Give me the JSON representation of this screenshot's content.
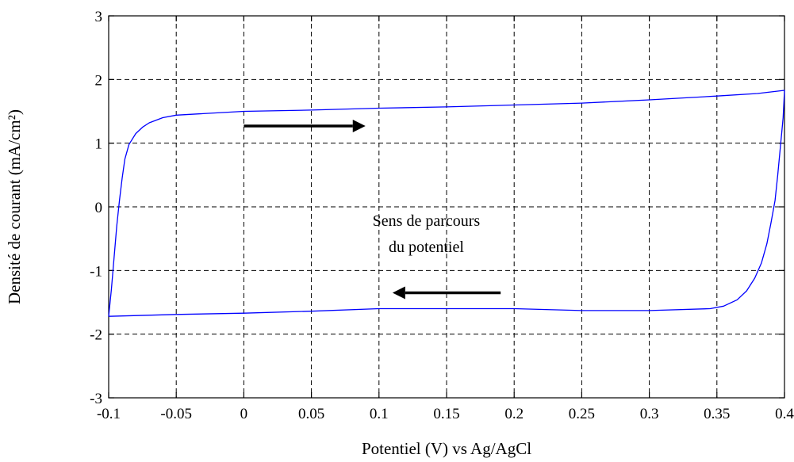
{
  "chart_data": {
    "type": "line",
    "title": "",
    "xlabel": "Potentiel (V) vs Ag/AgCl",
    "ylabel": "Densité de courant (mA/cm²)",
    "xlim": [
      -0.1,
      0.4
    ],
    "ylim": [
      -3,
      3
    ],
    "x_ticks": [
      -0.1,
      -0.05,
      0,
      0.05,
      0.1,
      0.15,
      0.2,
      0.25,
      0.3,
      0.35,
      0.4
    ],
    "x_tick_labels": [
      "-0.1",
      "-0.05",
      "0",
      "0.05",
      "0.1",
      "0.15",
      "0.2",
      "0.25",
      "0.3",
      "0.35",
      "0.4"
    ],
    "y_ticks": [
      -3,
      -2,
      -1,
      0,
      1,
      2,
      3
    ],
    "y_tick_labels": [
      "-3",
      "-2",
      "-1",
      "0",
      "1",
      "2",
      "3"
    ],
    "grid": true,
    "series": [
      {
        "color": "#0000ff",
        "x": [
          -0.1,
          -0.098,
          -0.096,
          -0.094,
          -0.092,
          -0.09,
          -0.088,
          -0.085,
          -0.08,
          -0.075,
          -0.07,
          -0.06,
          -0.05,
          0.0,
          0.05,
          0.1,
          0.15,
          0.2,
          0.25,
          0.3,
          0.35,
          0.38,
          0.4,
          0.4,
          0.399,
          0.397,
          0.395,
          0.393,
          0.39,
          0.387,
          0.383,
          0.378,
          0.372,
          0.365,
          0.355,
          0.345,
          0.3,
          0.25,
          0.2,
          0.15,
          0.1,
          0.05,
          0.0,
          -0.05,
          -0.1
        ],
        "y": [
          -1.72,
          -1.3,
          -0.8,
          -0.3,
          0.1,
          0.45,
          0.75,
          0.98,
          1.15,
          1.25,
          1.32,
          1.4,
          1.44,
          1.5,
          1.52,
          1.55,
          1.57,
          1.6,
          1.63,
          1.68,
          1.74,
          1.78,
          1.83,
          1.83,
          1.4,
          0.95,
          0.5,
          0.1,
          -0.25,
          -0.58,
          -0.88,
          -1.12,
          -1.32,
          -1.46,
          -1.56,
          -1.6,
          -1.63,
          -1.63,
          -1.6,
          -1.6,
          -1.6,
          -1.64,
          -1.67,
          -1.69,
          -1.72
        ]
      }
    ],
    "annotations": [
      {
        "text_lines": [
          "Sens de parcours",
          "du potentiel"
        ]
      },
      {
        "arrow": "right",
        "from": [
          0.0,
          1.27
        ],
        "to": [
          0.09,
          1.27
        ]
      },
      {
        "arrow": "left",
        "from": [
          0.19,
          -1.35
        ],
        "to": [
          0.11,
          -1.35
        ]
      }
    ]
  }
}
